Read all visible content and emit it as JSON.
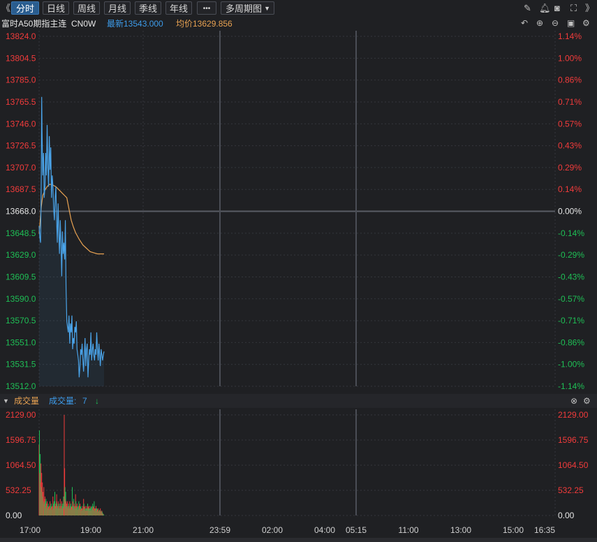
{
  "toolbar": {
    "back_glyph": "《",
    "tabs": [
      "分时",
      "日线",
      "周线",
      "月线",
      "季线",
      "年线"
    ],
    "more_label": "•••",
    "multi_period_label": "多周期图",
    "right_icons": [
      "edit-icon",
      "bell-icon",
      "camera-icon",
      "fullscreen-icon",
      "forward-icon"
    ]
  },
  "info": {
    "instrument": "富时A50期指主连",
    "code": "CN0W",
    "latest": "最新13543.000",
    "average": "均价13629.856",
    "latest_color": "#3d9be9",
    "average_color": "#e8a252"
  },
  "volume_panel": {
    "title": "成交量",
    "indicator_label": "成交量: ",
    "indicator_value": "7",
    "arrow": "↓"
  },
  "colors": {
    "up": "#f23b3b",
    "down": "#1fbf55",
    "price_line": "#4aa3e8",
    "avg_line": "#e8a252",
    "grid": "#34363c"
  },
  "chart_data": {
    "type": "line",
    "price_ticks_left": [
      "13824.0",
      "13804.5",
      "13785.0",
      "13765.5",
      "13746.0",
      "13726.5",
      "13707.0",
      "13687.5",
      "13668.0",
      "13648.5",
      "13629.0",
      "13609.5",
      "13590.0",
      "13570.5",
      "13551.0",
      "13531.5",
      "13512.0"
    ],
    "pct_ticks_right": [
      "1.14%",
      "1.00%",
      "0.86%",
      "0.71%",
      "0.57%",
      "0.43%",
      "0.29%",
      "0.14%",
      "0.00%",
      "-0.14%",
      "-0.29%",
      "-0.43%",
      "-0.57%",
      "-0.71%",
      "-0.86%",
      "-1.00%",
      "-1.14%"
    ],
    "y_range": [
      13512.0,
      13824.0
    ],
    "reference_price": 13668.0,
    "time_labels": [
      "17:00",
      "19:00",
      "21:00",
      "23:59",
      "02:00",
      "04:00",
      "05:15",
      "11:00",
      "13:00",
      "15:00",
      "16:35"
    ],
    "price_series": {
      "name": "最新",
      "x_minutes": [
        0,
        2,
        4,
        6,
        7,
        8,
        10,
        12,
        14,
        16,
        18,
        20,
        22,
        24,
        26,
        28,
        30,
        32,
        34,
        36,
        38,
        40,
        42,
        44,
        46,
        48,
        50,
        52,
        54,
        56,
        58,
        60,
        62,
        64,
        66,
        68,
        70,
        72,
        74,
        76,
        78,
        80,
        82,
        84,
        86,
        88,
        90,
        92,
        94,
        96,
        98,
        100,
        102,
        104,
        106,
        108,
        110,
        112,
        114,
        116,
        118,
        120,
        122,
        124,
        126,
        128,
        130,
        132,
        134,
        136,
        138,
        140,
        142,
        144,
        146,
        148,
        150,
        152,
        154,
        156,
        158,
        160,
        162,
        164,
        166,
        168,
        170,
        172,
        174,
        176,
        178
      ],
      "values": [
        13655,
        13645,
        13640,
        13700,
        13770,
        13740,
        13700,
        13720,
        13680,
        13690,
        13720,
        13700,
        13745,
        13710,
        13690,
        13735,
        13705,
        13725,
        13680,
        13700,
        13690,
        13670,
        13660,
        13680,
        13690,
        13660,
        13640,
        13675,
        13650,
        13630,
        13660,
        13640,
        13610,
        13650,
        13630,
        13640,
        13625,
        13660,
        13600,
        13570,
        13565,
        13560,
        13575,
        13550,
        13568,
        13560,
        13575,
        13545,
        13555,
        13550,
        13565,
        13560,
        13570,
        13545,
        13540,
        13535,
        13520,
        13530,
        13545,
        13540,
        13550,
        13535,
        13525,
        13540,
        13555,
        13530,
        13545,
        13550,
        13520,
        13535,
        13545,
        13540,
        13560,
        13535,
        13545,
        13550,
        13540,
        13535,
        13545,
        13540,
        13560,
        13545,
        13535,
        13550,
        13540,
        13530,
        13545,
        13540,
        13535,
        13540,
        13543
      ]
    },
    "avg_series": {
      "name": "均价",
      "x_minutes": [
        0,
        6,
        10,
        16,
        22,
        28,
        34,
        40,
        46,
        52,
        58,
        64,
        70,
        76,
        82,
        88,
        94,
        100,
        110,
        120,
        130,
        140,
        150,
        160,
        170,
        178
      ],
      "values": [
        13648,
        13672,
        13682,
        13687,
        13690,
        13692,
        13692,
        13691,
        13690,
        13688,
        13686,
        13684,
        13682,
        13680,
        13670,
        13660,
        13654,
        13649,
        13643,
        13638,
        13635,
        13632,
        13631,
        13630,
        13630,
        13630
      ]
    },
    "volume": {
      "ticks": [
        "2129.00",
        "1596.75",
        "1064.50",
        "532.25",
        "0.00"
      ],
      "y_range": [
        0,
        2129
      ],
      "bars": [
        {
          "m": 0,
          "v": 1500,
          "d": "up"
        },
        {
          "m": 1,
          "v": 1800,
          "d": "down"
        },
        {
          "m": 2,
          "v": 900,
          "d": "up"
        },
        {
          "m": 3,
          "v": 1300,
          "d": "down"
        },
        {
          "m": 4,
          "v": 700,
          "d": "up"
        },
        {
          "m": 5,
          "v": 1100,
          "d": "up"
        },
        {
          "m": 6,
          "v": 600,
          "d": "down"
        },
        {
          "m": 7,
          "v": 900,
          "d": "up"
        },
        {
          "m": 8,
          "v": 500,
          "d": "down"
        },
        {
          "m": 9,
          "v": 700,
          "d": "up"
        },
        {
          "m": 10,
          "v": 400,
          "d": "down"
        },
        {
          "m": 11,
          "v": 500,
          "d": "up"
        },
        {
          "m": 12,
          "v": 300,
          "d": "down"
        },
        {
          "m": 13,
          "v": 600,
          "d": "up"
        },
        {
          "m": 14,
          "v": 350,
          "d": "up"
        },
        {
          "m": 15,
          "v": 250,
          "d": "down"
        },
        {
          "m": 16,
          "v": 400,
          "d": "up"
        },
        {
          "m": 17,
          "v": 300,
          "d": "down"
        },
        {
          "m": 18,
          "v": 200,
          "d": "up"
        },
        {
          "m": 19,
          "v": 350,
          "d": "down"
        },
        {
          "m": 20,
          "v": 250,
          "d": "up"
        },
        {
          "m": 21,
          "v": 150,
          "d": "down"
        },
        {
          "m": 22,
          "v": 300,
          "d": "up"
        },
        {
          "m": 23,
          "v": 200,
          "d": "down"
        },
        {
          "m": 24,
          "v": 150,
          "d": "up"
        },
        {
          "m": 25,
          "v": 250,
          "d": "down"
        },
        {
          "m": 26,
          "v": 180,
          "d": "up"
        },
        {
          "m": 27,
          "v": 120,
          "d": "down"
        },
        {
          "m": 28,
          "v": 200,
          "d": "up"
        },
        {
          "m": 29,
          "v": 150,
          "d": "down"
        },
        {
          "m": 30,
          "v": 300,
          "d": "up"
        },
        {
          "m": 31,
          "v": 200,
          "d": "down"
        },
        {
          "m": 32,
          "v": 150,
          "d": "up"
        },
        {
          "m": 33,
          "v": 250,
          "d": "down"
        },
        {
          "m": 34,
          "v": 180,
          "d": "up"
        },
        {
          "m": 35,
          "v": 120,
          "d": "down"
        },
        {
          "m": 36,
          "v": 200,
          "d": "up"
        },
        {
          "m": 37,
          "v": 150,
          "d": "down"
        },
        {
          "m": 38,
          "v": 400,
          "d": "up"
        },
        {
          "m": 39,
          "v": 250,
          "d": "down"
        },
        {
          "m": 40,
          "v": 150,
          "d": "up"
        },
        {
          "m": 41,
          "v": 300,
          "d": "down"
        },
        {
          "m": 42,
          "v": 200,
          "d": "up"
        },
        {
          "m": 43,
          "v": 500,
          "d": "down"
        },
        {
          "m": 44,
          "v": 250,
          "d": "up"
        },
        {
          "m": 45,
          "v": 150,
          "d": "down"
        },
        {
          "m": 46,
          "v": 200,
          "d": "up"
        },
        {
          "m": 47,
          "v": 300,
          "d": "down"
        },
        {
          "m": 48,
          "v": 450,
          "d": "up"
        },
        {
          "m": 49,
          "v": 250,
          "d": "down"
        },
        {
          "m": 50,
          "v": 200,
          "d": "up"
        },
        {
          "m": 51,
          "v": 150,
          "d": "down"
        },
        {
          "m": 52,
          "v": 300,
          "d": "up"
        },
        {
          "m": 53,
          "v": 200,
          "d": "down"
        },
        {
          "m": 54,
          "v": 150,
          "d": "up"
        },
        {
          "m": 55,
          "v": 250,
          "d": "down"
        },
        {
          "m": 56,
          "v": 200,
          "d": "up"
        },
        {
          "m": 57,
          "v": 150,
          "d": "down"
        },
        {
          "m": 58,
          "v": 350,
          "d": "up"
        },
        {
          "m": 59,
          "v": 250,
          "d": "down"
        },
        {
          "m": 60,
          "v": 200,
          "d": "up"
        },
        {
          "m": 61,
          "v": 150,
          "d": "down"
        },
        {
          "m": 62,
          "v": 300,
          "d": "up"
        },
        {
          "m": 63,
          "v": 200,
          "d": "down"
        },
        {
          "m": 64,
          "v": 150,
          "d": "up"
        },
        {
          "m": 65,
          "v": 250,
          "d": "down"
        },
        {
          "m": 66,
          "v": 180,
          "d": "up"
        },
        {
          "m": 67,
          "v": 400,
          "d": "down"
        },
        {
          "m": 68,
          "v": 150,
          "d": "up"
        },
        {
          "m": 69,
          "v": 2129,
          "d": "up"
        },
        {
          "m": 70,
          "v": 1000,
          "d": "up"
        },
        {
          "m": 71,
          "v": 600,
          "d": "down"
        },
        {
          "m": 72,
          "v": 350,
          "d": "up"
        },
        {
          "m": 73,
          "v": 500,
          "d": "down"
        },
        {
          "m": 74,
          "v": 300,
          "d": "up"
        },
        {
          "m": 75,
          "v": 200,
          "d": "down"
        },
        {
          "m": 76,
          "v": 250,
          "d": "up"
        },
        {
          "m": 77,
          "v": 180,
          "d": "down"
        },
        {
          "m": 78,
          "v": 300,
          "d": "up"
        },
        {
          "m": 79,
          "v": 200,
          "d": "down"
        },
        {
          "m": 80,
          "v": 150,
          "d": "up"
        },
        {
          "m": 81,
          "v": 250,
          "d": "down"
        },
        {
          "m": 82,
          "v": 200,
          "d": "up"
        },
        {
          "m": 83,
          "v": 150,
          "d": "down"
        },
        {
          "m": 84,
          "v": 300,
          "d": "up"
        },
        {
          "m": 85,
          "v": 200,
          "d": "down"
        },
        {
          "m": 86,
          "v": 150,
          "d": "up"
        },
        {
          "m": 87,
          "v": 250,
          "d": "down"
        },
        {
          "m": 88,
          "v": 180,
          "d": "up"
        },
        {
          "m": 89,
          "v": 120,
          "d": "down"
        },
        {
          "m": 90,
          "v": 200,
          "d": "up"
        },
        {
          "m": 91,
          "v": 600,
          "d": "down"
        },
        {
          "m": 92,
          "v": 300,
          "d": "up"
        },
        {
          "m": 93,
          "v": 200,
          "d": "down"
        },
        {
          "m": 94,
          "v": 150,
          "d": "up"
        },
        {
          "m": 95,
          "v": 350,
          "d": "down"
        },
        {
          "m": 96,
          "v": 250,
          "d": "up"
        },
        {
          "m": 97,
          "v": 180,
          "d": "down"
        },
        {
          "m": 98,
          "v": 200,
          "d": "up"
        },
        {
          "m": 99,
          "v": 150,
          "d": "down"
        },
        {
          "m": 100,
          "v": 450,
          "d": "up"
        },
        {
          "m": 101,
          "v": 300,
          "d": "down"
        },
        {
          "m": 102,
          "v": 200,
          "d": "up"
        },
        {
          "m": 103,
          "v": 150,
          "d": "down"
        },
        {
          "m": 104,
          "v": 250,
          "d": "up"
        },
        {
          "m": 105,
          "v": 180,
          "d": "down"
        },
        {
          "m": 106,
          "v": 120,
          "d": "up"
        },
        {
          "m": 107,
          "v": 200,
          "d": "down"
        },
        {
          "m": 108,
          "v": 150,
          "d": "up"
        },
        {
          "m": 109,
          "v": 300,
          "d": "down"
        },
        {
          "m": 110,
          "v": 200,
          "d": "up"
        },
        {
          "m": 111,
          "v": 150,
          "d": "down"
        },
        {
          "m": 112,
          "v": 250,
          "d": "up"
        },
        {
          "m": 113,
          "v": 180,
          "d": "down"
        },
        {
          "m": 114,
          "v": 120,
          "d": "up"
        },
        {
          "m": 115,
          "v": 200,
          "d": "down"
        },
        {
          "m": 116,
          "v": 150,
          "d": "up"
        },
        {
          "m": 117,
          "v": 100,
          "d": "down"
        },
        {
          "m": 118,
          "v": 150,
          "d": "up"
        },
        {
          "m": 119,
          "v": 120,
          "d": "down"
        },
        {
          "m": 120,
          "v": 200,
          "d": "up"
        },
        {
          "m": 121,
          "v": 150,
          "d": "down"
        },
        {
          "m": 122,
          "v": 350,
          "d": "up"
        },
        {
          "m": 123,
          "v": 250,
          "d": "down"
        },
        {
          "m": 124,
          "v": 180,
          "d": "up"
        },
        {
          "m": 125,
          "v": 120,
          "d": "down"
        },
        {
          "m": 126,
          "v": 200,
          "d": "up"
        },
        {
          "m": 127,
          "v": 150,
          "d": "down"
        },
        {
          "m": 128,
          "v": 100,
          "d": "up"
        },
        {
          "m": 129,
          "v": 150,
          "d": "down"
        },
        {
          "m": 130,
          "v": 200,
          "d": "up"
        },
        {
          "m": 131,
          "v": 150,
          "d": "down"
        },
        {
          "m": 132,
          "v": 100,
          "d": "up"
        },
        {
          "m": 133,
          "v": 250,
          "d": "down"
        },
        {
          "m": 134,
          "v": 180,
          "d": "up"
        },
        {
          "m": 135,
          "v": 120,
          "d": "down"
        },
        {
          "m": 136,
          "v": 200,
          "d": "up"
        },
        {
          "m": 137,
          "v": 150,
          "d": "down"
        },
        {
          "m": 138,
          "v": 100,
          "d": "up"
        },
        {
          "m": 139,
          "v": 150,
          "d": "down"
        },
        {
          "m": 140,
          "v": 200,
          "d": "up"
        },
        {
          "m": 141,
          "v": 150,
          "d": "down"
        },
        {
          "m": 142,
          "v": 100,
          "d": "up"
        },
        {
          "m": 143,
          "v": 180,
          "d": "down"
        },
        {
          "m": 144,
          "v": 120,
          "d": "up"
        },
        {
          "m": 145,
          "v": 200,
          "d": "down"
        },
        {
          "m": 146,
          "v": 150,
          "d": "up"
        },
        {
          "m": 147,
          "v": 250,
          "d": "down"
        },
        {
          "m": 148,
          "v": 180,
          "d": "up"
        },
        {
          "m": 149,
          "v": 120,
          "d": "down"
        },
        {
          "m": 150,
          "v": 200,
          "d": "up"
        },
        {
          "m": 151,
          "v": 300,
          "d": "down"
        },
        {
          "m": 152,
          "v": 150,
          "d": "up"
        },
        {
          "m": 153,
          "v": 100,
          "d": "down"
        },
        {
          "m": 154,
          "v": 150,
          "d": "up"
        },
        {
          "m": 155,
          "v": 120,
          "d": "down"
        },
        {
          "m": 156,
          "v": 200,
          "d": "up"
        },
        {
          "m": 157,
          "v": 150,
          "d": "down"
        },
        {
          "m": 158,
          "v": 100,
          "d": "up"
        },
        {
          "m": 159,
          "v": 150,
          "d": "down"
        },
        {
          "m": 160,
          "v": 120,
          "d": "up"
        },
        {
          "m": 161,
          "v": 80,
          "d": "down"
        },
        {
          "m": 162,
          "v": 150,
          "d": "up"
        },
        {
          "m": 163,
          "v": 100,
          "d": "down"
        },
        {
          "m": 164,
          "v": 80,
          "d": "up"
        },
        {
          "m": 165,
          "v": 120,
          "d": "down"
        },
        {
          "m": 166,
          "v": 100,
          "d": "up"
        },
        {
          "m": 167,
          "v": 80,
          "d": "down"
        },
        {
          "m": 168,
          "v": 150,
          "d": "up"
        },
        {
          "m": 169,
          "v": 100,
          "d": "down"
        },
        {
          "m": 170,
          "v": 80,
          "d": "up"
        },
        {
          "m": 171,
          "v": 60,
          "d": "down"
        },
        {
          "m": 172,
          "v": 100,
          "d": "up"
        },
        {
          "m": 173,
          "v": 80,
          "d": "down"
        },
        {
          "m": 174,
          "v": 50,
          "d": "up"
        },
        {
          "m": 175,
          "v": 40,
          "d": "down"
        },
        {
          "m": 176,
          "v": 30,
          "d": "up"
        },
        {
          "m": 177,
          "v": 20,
          "d": "down"
        },
        {
          "m": 178,
          "v": 7,
          "d": "down"
        }
      ]
    }
  }
}
